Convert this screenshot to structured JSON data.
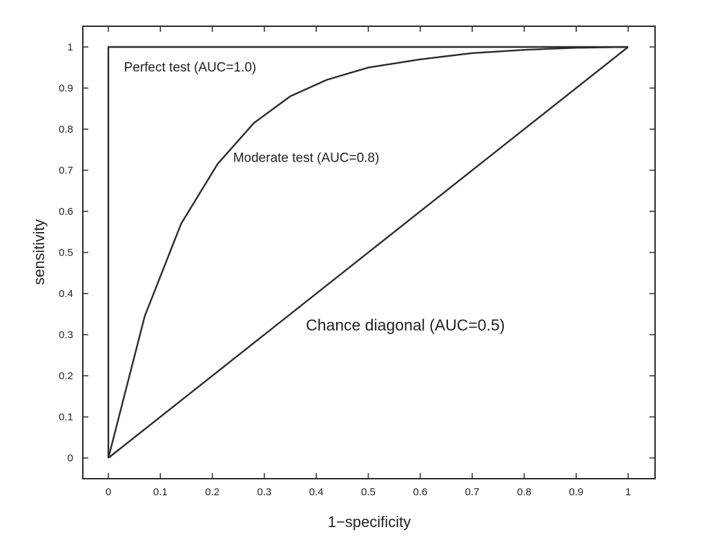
{
  "chart_data": {
    "type": "line",
    "title": "",
    "xlabel": "1−specificity",
    "ylabel": "sensitivity",
    "xlim": [
      -0.05,
      1.05
    ],
    "ylim": [
      -0.05,
      1.05
    ],
    "grid": false,
    "legend": "none",
    "x_ticks": [
      "0",
      "0.1",
      "0.2",
      "0.3",
      "0.4",
      "0.5",
      "0.6",
      "0.7",
      "0.8",
      "0.9",
      "1"
    ],
    "y_ticks": [
      "0",
      "0.1",
      "0.2",
      "0.3",
      "0.4",
      "0.5",
      "0.6",
      "0.7",
      "0.8",
      "0.9",
      "1"
    ],
    "series": [
      {
        "points": [
          [
            0,
            0
          ],
          [
            0,
            1
          ],
          [
            1,
            1
          ]
        ]
      },
      {
        "points": [
          [
            0,
            0
          ],
          [
            0.07,
            0.345
          ],
          [
            0.14,
            0.57
          ],
          [
            0.21,
            0.715
          ],
          [
            0.28,
            0.815
          ],
          [
            0.35,
            0.88
          ],
          [
            0.42,
            0.92
          ],
          [
            0.5,
            0.95
          ],
          [
            0.6,
            0.97
          ],
          [
            0.7,
            0.985
          ],
          [
            0.8,
            0.993
          ],
          [
            0.9,
            0.998
          ],
          [
            1,
            1
          ]
        ]
      },
      {
        "points": [
          [
            0,
            0
          ],
          [
            1,
            1
          ]
        ]
      }
    ],
    "annotations": [
      {
        "text": "Perfect test (AUC=1.0)",
        "x": 0.03,
        "y": 0.94,
        "size": "normal"
      },
      {
        "text": "Moderate test (AUC=0.8)",
        "x": 0.24,
        "y": 0.72,
        "size": "normal"
      },
      {
        "text": "Chance diagonal (AUC=0.5)",
        "x": 0.38,
        "y": 0.31,
        "size": "large"
      }
    ],
    "colors": {
      "line": "#2a2a2a",
      "text": "#222222",
      "background": "#ffffff"
    }
  }
}
